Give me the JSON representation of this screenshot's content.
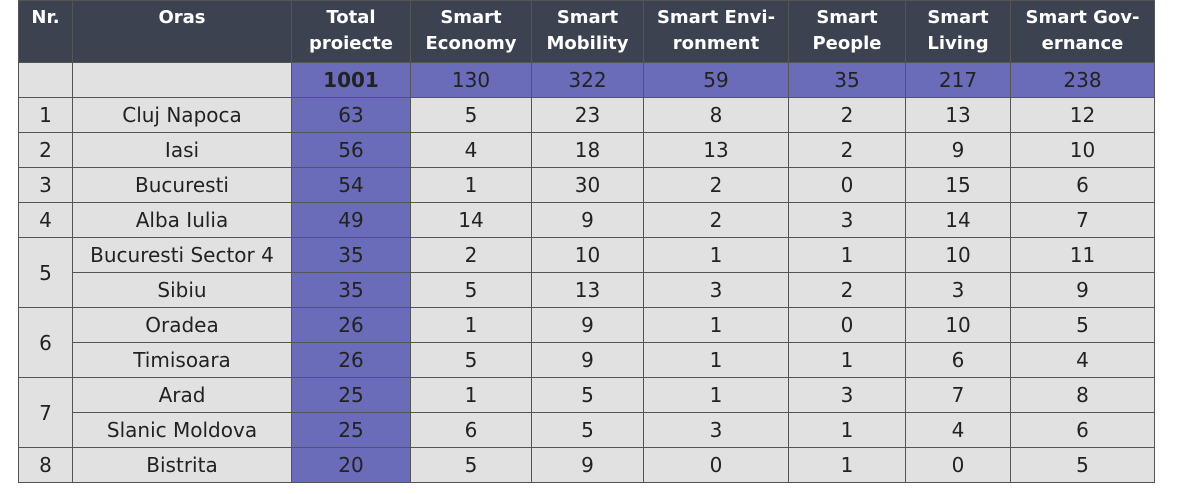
{
  "table": {
    "header": [
      [
        "Nr."
      ],
      [
        "Oras"
      ],
      [
        "Total",
        "proiecte"
      ],
      [
        "Smart",
        "Economy"
      ],
      [
        "Smart",
        "Mobility"
      ],
      [
        "Smart Envi-",
        "ronment"
      ],
      [
        "Smart",
        "People"
      ],
      [
        "Smart",
        "Living"
      ],
      [
        "Smart Gov-",
        "ernance"
      ]
    ],
    "totals": [
      1001,
      130,
      322,
      59,
      35,
      217,
      238
    ],
    "rows": [
      {
        "rank": 1,
        "city": "Cluj Napoca",
        "values": [
          63,
          5,
          23,
          8,
          2,
          13,
          12
        ]
      },
      {
        "rank": 2,
        "city": "Iasi",
        "values": [
          56,
          4,
          18,
          13,
          2,
          9,
          10
        ]
      },
      {
        "rank": 3,
        "city": "Bucuresti",
        "values": [
          54,
          1,
          30,
          2,
          0,
          15,
          6
        ]
      },
      {
        "rank": 4,
        "city": "Alba Iulia",
        "values": [
          49,
          14,
          9,
          2,
          3,
          14,
          7
        ]
      },
      {
        "rank": 5,
        "city": "Bucuresti Sector 4",
        "values": [
          35,
          2,
          10,
          1,
          1,
          10,
          11
        ]
      },
      {
        "rank": null,
        "city": "Sibiu",
        "values": [
          35,
          5,
          13,
          3,
          2,
          3,
          9
        ]
      },
      {
        "rank": 6,
        "city": "Oradea",
        "values": [
          26,
          1,
          9,
          1,
          0,
          10,
          5
        ]
      },
      {
        "rank": null,
        "city": "Timisoara",
        "values": [
          26,
          5,
          9,
          1,
          1,
          6,
          4
        ]
      },
      {
        "rank": 7,
        "city": "Arad",
        "values": [
          25,
          1,
          5,
          1,
          3,
          7,
          8
        ]
      },
      {
        "rank": null,
        "city": "Slanic Moldova",
        "values": [
          25,
          6,
          5,
          3,
          1,
          4,
          6
        ]
      },
      {
        "rank": 8,
        "city": "Bistrita",
        "values": [
          20,
          5,
          9,
          0,
          1,
          0,
          5
        ]
      }
    ]
  }
}
